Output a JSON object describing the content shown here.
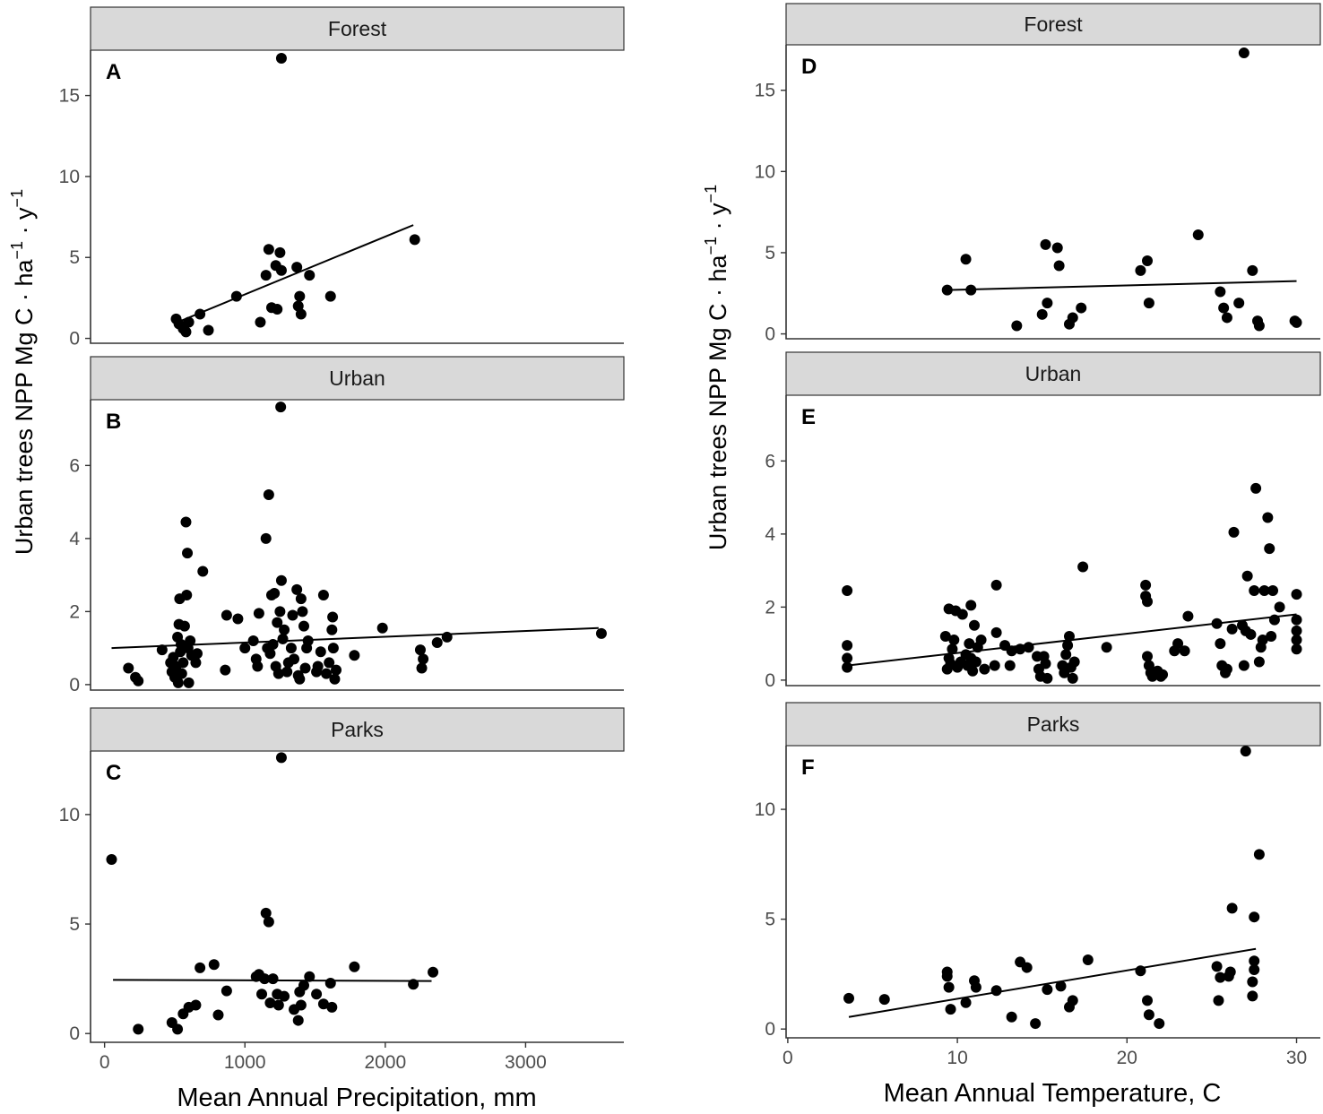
{
  "chart_data": [
    {
      "type": "scatter",
      "panel": "A",
      "facet": "Forest",
      "xlabel": "Mean Annual Precipitation, mm",
      "ylabel": "Urban trees NPP   Mg C · ha⁻¹ · y⁻¹",
      "xlim": [
        -100,
        3700
      ],
      "ylim": [
        -0.3,
        17.8
      ],
      "yticks": [
        0,
        5,
        10,
        15
      ],
      "xticks": [],
      "fit": [
        [
          520,
          1.0
        ],
        [
          2200,
          7.0
        ]
      ],
      "points": [
        [
          510,
          1.2
        ],
        [
          530,
          0.9
        ],
        [
          560,
          0.6
        ],
        [
          580,
          0.4
        ],
        [
          600,
          1.0
        ],
        [
          680,
          1.5
        ],
        [
          740,
          0.5
        ],
        [
          940,
          2.6
        ],
        [
          1110,
          1.0
        ],
        [
          1150,
          3.9
        ],
        [
          1170,
          5.5
        ],
        [
          1190,
          1.9
        ],
        [
          1220,
          4.5
        ],
        [
          1230,
          1.8
        ],
        [
          1250,
          5.3
        ],
        [
          1260,
          4.2
        ],
        [
          1260,
          17.3
        ],
        [
          1370,
          4.4
        ],
        [
          1380,
          2.0
        ],
        [
          1390,
          2.6
        ],
        [
          1400,
          1.5
        ],
        [
          1460,
          3.9
        ],
        [
          1610,
          2.6
        ],
        [
          2210,
          6.1
        ]
      ]
    },
    {
      "type": "scatter",
      "panel": "B",
      "facet": "Urban",
      "xlim": [
        -100,
        3700
      ],
      "ylim": [
        -0.15,
        7.8
      ],
      "yticks": [
        0,
        2,
        4,
        6
      ],
      "xticks": [],
      "fit": [
        [
          50,
          1.0
        ],
        [
          3520,
          1.55
        ]
      ],
      "points": [
        [
          170,
          0.45
        ],
        [
          220,
          0.2
        ],
        [
          240,
          0.1
        ],
        [
          410,
          0.95
        ],
        [
          470,
          0.6
        ],
        [
          480,
          0.35
        ],
        [
          490,
          0.75
        ],
        [
          500,
          0.2
        ],
        [
          510,
          0.5
        ],
        [
          520,
          1.3
        ],
        [
          525,
          0.05
        ],
        [
          530,
          1.65
        ],
        [
          535,
          2.35
        ],
        [
          540,
          0.9
        ],
        [
          545,
          1.1
        ],
        [
          550,
          0.3
        ],
        [
          560,
          0.6
        ],
        [
          570,
          1.6
        ],
        [
          580,
          4.45
        ],
        [
          585,
          2.45
        ],
        [
          590,
          3.6
        ],
        [
          595,
          1.0
        ],
        [
          600,
          0.05
        ],
        [
          610,
          1.2
        ],
        [
          620,
          0.8
        ],
        [
          650,
          0.6
        ],
        [
          660,
          0.85
        ],
        [
          700,
          3.1
        ],
        [
          860,
          0.4
        ],
        [
          870,
          1.9
        ],
        [
          950,
          1.8
        ],
        [
          1000,
          1.0
        ],
        [
          1060,
          1.2
        ],
        [
          1080,
          0.7
        ],
        [
          1090,
          0.5
        ],
        [
          1100,
          1.95
        ],
        [
          1150,
          4.0
        ],
        [
          1160,
          1.0
        ],
        [
          1170,
          5.2
        ],
        [
          1180,
          0.85
        ],
        [
          1190,
          2.45
        ],
        [
          1200,
          1.1
        ],
        [
          1210,
          2.5
        ],
        [
          1220,
          0.5
        ],
        [
          1230,
          1.7
        ],
        [
          1240,
          0.3
        ],
        [
          1250,
          2.0
        ],
        [
          1255,
          7.6
        ],
        [
          1260,
          2.85
        ],
        [
          1270,
          1.25
        ],
        [
          1280,
          1.5
        ],
        [
          1300,
          0.35
        ],
        [
          1310,
          0.6
        ],
        [
          1330,
          1.0
        ],
        [
          1340,
          1.9
        ],
        [
          1350,
          0.7
        ],
        [
          1370,
          2.6
        ],
        [
          1380,
          0.25
        ],
        [
          1390,
          0.15
        ],
        [
          1400,
          2.35
        ],
        [
          1410,
          2.0
        ],
        [
          1420,
          1.6
        ],
        [
          1430,
          0.45
        ],
        [
          1440,
          1.0
        ],
        [
          1450,
          1.2
        ],
        [
          1510,
          0.35
        ],
        [
          1520,
          0.5
        ],
        [
          1540,
          0.9
        ],
        [
          1560,
          2.45
        ],
        [
          1580,
          0.3
        ],
        [
          1600,
          0.6
        ],
        [
          1620,
          1.5
        ],
        [
          1625,
          1.85
        ],
        [
          1630,
          1.0
        ],
        [
          1640,
          0.15
        ],
        [
          1650,
          0.4
        ],
        [
          1780,
          0.8
        ],
        [
          1980,
          1.55
        ],
        [
          2250,
          0.95
        ],
        [
          2260,
          0.45
        ],
        [
          2270,
          0.7
        ],
        [
          2370,
          1.15
        ],
        [
          2440,
          1.3
        ],
        [
          3540,
          1.4
        ]
      ]
    },
    {
      "type": "scatter",
      "panel": "C",
      "facet": "Parks",
      "xlim": [
        -100,
        3700
      ],
      "ylim": [
        -0.4,
        12.9
      ],
      "yticks": [
        0,
        5,
        10
      ],
      "xticks": [
        0,
        1000,
        2000,
        3000
      ],
      "fit": [
        [
          60,
          2.45
        ],
        [
          2330,
          2.4
        ]
      ],
      "points": [
        [
          50,
          7.95
        ],
        [
          240,
          0.2
        ],
        [
          480,
          0.5
        ],
        [
          520,
          0.2
        ],
        [
          560,
          0.9
        ],
        [
          600,
          1.2
        ],
        [
          650,
          1.3
        ],
        [
          680,
          3.0
        ],
        [
          780,
          3.15
        ],
        [
          810,
          0.85
        ],
        [
          870,
          1.95
        ],
        [
          1080,
          2.6
        ],
        [
          1100,
          2.7
        ],
        [
          1120,
          1.8
        ],
        [
          1140,
          2.5
        ],
        [
          1150,
          5.5
        ],
        [
          1170,
          5.1
        ],
        [
          1180,
          1.4
        ],
        [
          1200,
          2.5
        ],
        [
          1230,
          1.8
        ],
        [
          1240,
          1.3
        ],
        [
          1260,
          12.6
        ],
        [
          1280,
          1.7
        ],
        [
          1350,
          1.1
        ],
        [
          1380,
          0.6
        ],
        [
          1390,
          1.9
        ],
        [
          1400,
          1.3
        ],
        [
          1420,
          2.2
        ],
        [
          1460,
          2.6
        ],
        [
          1510,
          1.8
        ],
        [
          1560,
          1.35
        ],
        [
          1610,
          2.3
        ],
        [
          1620,
          1.2
        ],
        [
          1780,
          3.05
        ],
        [
          2200,
          2.25
        ],
        [
          2340,
          2.8
        ]
      ]
    },
    {
      "type": "scatter",
      "panel": "D",
      "facet": "Forest",
      "xlabel": "Mean Annual Temperature, C",
      "ylabel": "Urban trees NPP   Mg C · ha⁻¹ · y⁻¹",
      "xlim": [
        -0.1,
        31.4
      ],
      "ylim": [
        -0.3,
        17.8
      ],
      "yticks": [
        0,
        5,
        10,
        15
      ],
      "xticks": [],
      "fit": [
        [
          9.4,
          2.7
        ],
        [
          30.0,
          3.25
        ]
      ],
      "points": [
        [
          9.4,
          2.7
        ],
        [
          10.5,
          4.6
        ],
        [
          10.8,
          2.7
        ],
        [
          13.5,
          0.5
        ],
        [
          15.0,
          1.2
        ],
        [
          15.2,
          5.5
        ],
        [
          15.3,
          1.9
        ],
        [
          15.9,
          5.3
        ],
        [
          16.0,
          4.2
        ],
        [
          16.6,
          0.6
        ],
        [
          16.8,
          1.0
        ],
        [
          17.3,
          1.6
        ],
        [
          20.8,
          3.9
        ],
        [
          21.2,
          4.5
        ],
        [
          21.3,
          1.9
        ],
        [
          24.2,
          6.1
        ],
        [
          25.5,
          2.6
        ],
        [
          25.7,
          1.6
        ],
        [
          25.9,
          1.0
        ],
        [
          26.6,
          1.9
        ],
        [
          26.9,
          17.3
        ],
        [
          27.4,
          3.9
        ],
        [
          27.7,
          0.8
        ],
        [
          27.8,
          0.5
        ],
        [
          29.9,
          0.8
        ],
        [
          30.0,
          0.7
        ]
      ]
    },
    {
      "type": "scatter",
      "panel": "E",
      "facet": "Urban",
      "xlim": [
        -0.1,
        31.4
      ],
      "ylim": [
        -0.15,
        7.8
      ],
      "yticks": [
        0,
        2,
        4,
        6
      ],
      "xticks": [],
      "fit": [
        [
          3.5,
          0.4
        ],
        [
          30.0,
          1.8
        ]
      ],
      "points": [
        [
          3.5,
          2.45
        ],
        [
          3.5,
          0.95
        ],
        [
          3.5,
          0.6
        ],
        [
          3.5,
          0.35
        ],
        [
          9.3,
          1.2
        ],
        [
          9.4,
          0.3
        ],
        [
          9.5,
          0.6
        ],
        [
          9.5,
          1.95
        ],
        [
          9.6,
          0.45
        ],
        [
          9.7,
          0.85
        ],
        [
          9.8,
          1.1
        ],
        [
          9.9,
          1.9
        ],
        [
          10.0,
          0.35
        ],
        [
          10.2,
          0.5
        ],
        [
          10.3,
          1.8
        ],
        [
          10.5,
          0.7
        ],
        [
          10.6,
          0.4
        ],
        [
          10.7,
          1.0
        ],
        [
          10.8,
          0.6
        ],
        [
          10.8,
          2.05
        ],
        [
          10.9,
          0.25
        ],
        [
          11.0,
          1.5
        ],
        [
          11.1,
          0.5
        ],
        [
          11.2,
          0.9
        ],
        [
          11.4,
          1.1
        ],
        [
          11.6,
          0.3
        ],
        [
          12.2,
          0.4
        ],
        [
          12.3,
          1.3
        ],
        [
          12.3,
          2.6
        ],
        [
          12.8,
          0.95
        ],
        [
          13.1,
          0.4
        ],
        [
          13.2,
          0.8
        ],
        [
          13.7,
          0.85
        ],
        [
          14.2,
          0.9
        ],
        [
          14.7,
          0.65
        ],
        [
          14.8,
          0.3
        ],
        [
          14.9,
          0.1
        ],
        [
          15.1,
          0.65
        ],
        [
          15.2,
          0.45
        ],
        [
          15.3,
          0.05
        ],
        [
          16.2,
          0.4
        ],
        [
          16.3,
          0.2
        ],
        [
          16.4,
          0.7
        ],
        [
          16.5,
          0.95
        ],
        [
          16.6,
          1.2
        ],
        [
          16.7,
          0.35
        ],
        [
          16.8,
          0.05
        ],
        [
          16.9,
          0.5
        ],
        [
          17.4,
          3.1
        ],
        [
          18.8,
          0.9
        ],
        [
          21.1,
          2.6
        ],
        [
          21.1,
          2.3
        ],
        [
          21.2,
          2.15
        ],
        [
          21.2,
          0.65
        ],
        [
          21.3,
          0.4
        ],
        [
          21.4,
          0.2
        ],
        [
          21.5,
          0.1
        ],
        [
          21.8,
          0.25
        ],
        [
          22.0,
          0.1
        ],
        [
          22.1,
          0.15
        ],
        [
          22.8,
          0.8
        ],
        [
          23.0,
          1.0
        ],
        [
          23.4,
          0.8
        ],
        [
          23.6,
          1.75
        ],
        [
          25.3,
          1.55
        ],
        [
          25.5,
          1.0
        ],
        [
          25.6,
          0.4
        ],
        [
          25.8,
          0.2
        ],
        [
          25.9,
          0.3
        ],
        [
          26.2,
          1.4
        ],
        [
          26.3,
          4.05
        ],
        [
          26.8,
          1.5
        ],
        [
          26.9,
          0.4
        ],
        [
          27.0,
          1.35
        ],
        [
          27.1,
          2.85
        ],
        [
          27.3,
          1.25
        ],
        [
          27.5,
          2.45
        ],
        [
          27.6,
          5.25
        ],
        [
          27.8,
          0.5
        ],
        [
          27.9,
          0.9
        ],
        [
          28.0,
          1.1
        ],
        [
          28.1,
          2.45
        ],
        [
          28.3,
          4.45
        ],
        [
          28.4,
          3.6
        ],
        [
          28.5,
          1.2
        ],
        [
          28.6,
          2.45
        ],
        [
          28.7,
          1.65
        ],
        [
          29.0,
          2.0
        ],
        [
          30.0,
          2.35
        ],
        [
          30.0,
          1.65
        ],
        [
          30.0,
          1.35
        ],
        [
          30.0,
          1.1
        ],
        [
          30.0,
          0.85
        ]
      ]
    },
    {
      "type": "scatter",
      "panel": "F",
      "facet": "Parks",
      "xlim": [
        -0.1,
        31.4
      ],
      "ylim": [
        -0.4,
        12.9
      ],
      "yticks": [
        0,
        5,
        10
      ],
      "xticks": [
        0,
        10,
        20,
        30
      ],
      "fit": [
        [
          3.6,
          0.55
        ],
        [
          27.6,
          3.65
        ]
      ],
      "points": [
        [
          3.6,
          1.4
        ],
        [
          5.7,
          1.35
        ],
        [
          9.4,
          2.6
        ],
        [
          9.4,
          2.4
        ],
        [
          9.5,
          1.9
        ],
        [
          9.6,
          0.9
        ],
        [
          10.5,
          1.2
        ],
        [
          11.0,
          2.2
        ],
        [
          11.1,
          1.9
        ],
        [
          12.3,
          1.75
        ],
        [
          13.2,
          0.55
        ],
        [
          13.7,
          3.05
        ],
        [
          14.1,
          2.8
        ],
        [
          14.6,
          0.25
        ],
        [
          15.3,
          1.8
        ],
        [
          16.1,
          1.95
        ],
        [
          16.6,
          1.0
        ],
        [
          16.8,
          1.3
        ],
        [
          17.7,
          3.15
        ],
        [
          20.8,
          2.65
        ],
        [
          21.2,
          1.3
        ],
        [
          21.3,
          0.65
        ],
        [
          21.9,
          0.25
        ],
        [
          25.3,
          2.85
        ],
        [
          25.4,
          1.3
        ],
        [
          25.5,
          2.35
        ],
        [
          26.0,
          2.4
        ],
        [
          26.1,
          2.6
        ],
        [
          26.2,
          5.5
        ],
        [
          27.0,
          12.65
        ],
        [
          27.4,
          1.5
        ],
        [
          27.4,
          2.15
        ],
        [
          27.5,
          2.7
        ],
        [
          27.5,
          3.1
        ],
        [
          27.5,
          5.1
        ],
        [
          27.8,
          7.95
        ]
      ]
    }
  ],
  "labels": {
    "letters": [
      "A",
      "B",
      "C",
      "D",
      "E",
      "F"
    ],
    "facets": [
      "Forest",
      "Urban",
      "Parks",
      "Forest",
      "Urban",
      "Parks"
    ],
    "ylabel_left": "Urban trees NPP   Mg C · ha⁻¹ · y⁻¹",
    "ylabel_right": "Urban trees NPP   Mg C · ha⁻¹ · y⁻¹",
    "xlabel_left": "Mean Annual Precipitation, mm",
    "xlabel_right": "Mean Annual Temperature, C"
  }
}
